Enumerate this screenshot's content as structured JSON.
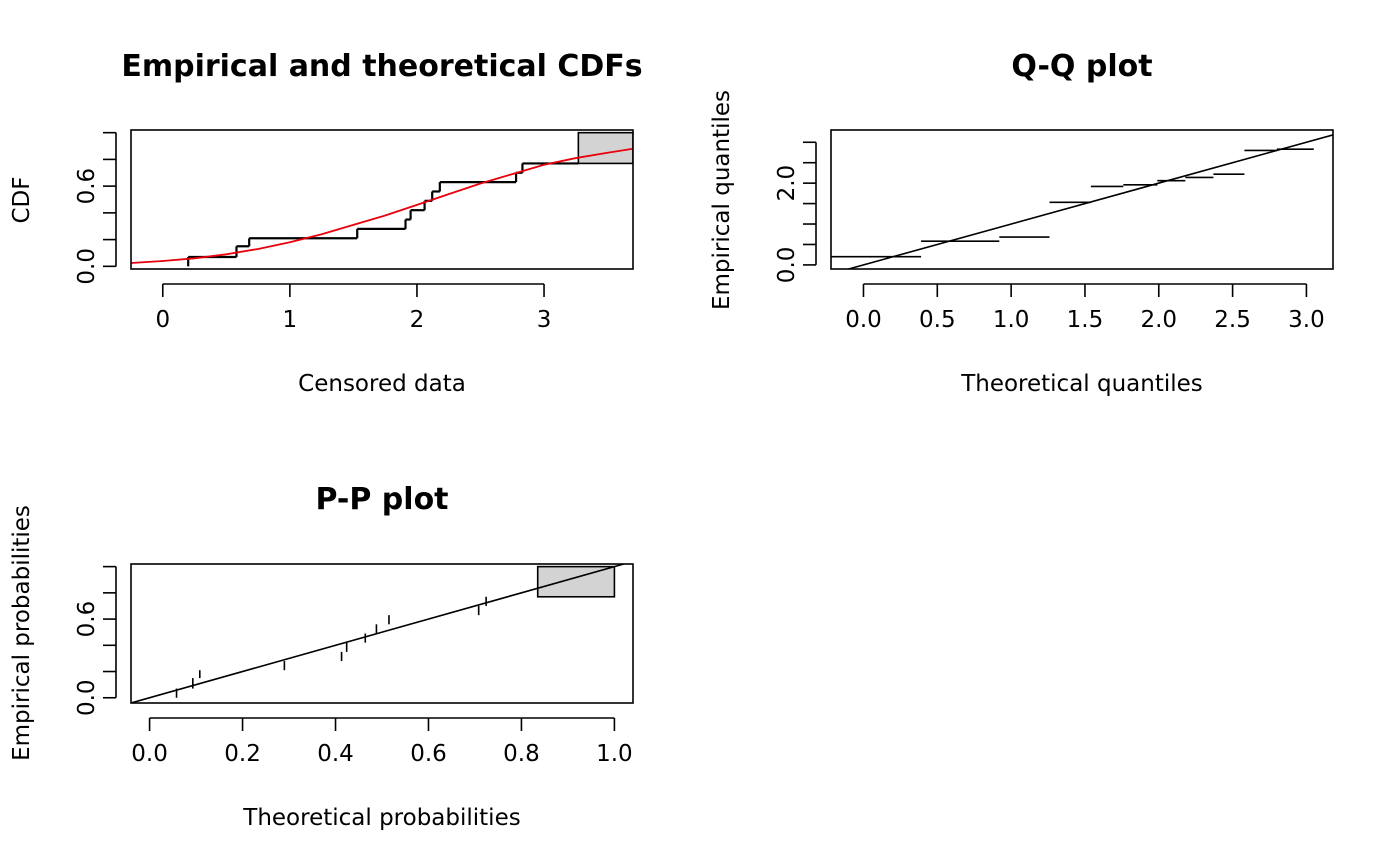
{
  "chart_data": [
    {
      "type": "line",
      "title": "Empirical and theoretical CDFs",
      "xlabel": "Censored data",
      "ylabel": "CDF",
      "xlim": [
        -0.25,
        3.7
      ],
      "ylim": [
        -0.02,
        1.02
      ],
      "xticks": [
        0,
        1,
        2,
        3
      ],
      "xtick_labels": [
        "0",
        "1",
        "2",
        "3"
      ],
      "yticks": [
        0.0,
        0.2,
        0.4,
        0.6,
        0.8,
        1.0
      ],
      "ytick_labels": [
        "0.0",
        "",
        "",
        "0.6",
        "",
        ""
      ],
      "empirical_steps": [
        [
          0.2,
          0.0,
          0.07
        ],
        [
          0.58,
          0.07,
          0.15
        ],
        [
          0.68,
          0.15,
          0.21
        ],
        [
          1.53,
          0.21,
          0.28
        ],
        [
          1.91,
          0.28,
          0.35
        ],
        [
          1.95,
          0.35,
          0.42
        ],
        [
          2.06,
          0.42,
          0.49
        ],
        [
          2.12,
          0.49,
          0.56
        ],
        [
          2.18,
          0.56,
          0.63
        ],
        [
          2.78,
          0.63,
          0.7
        ],
        [
          2.83,
          0.7,
          0.77
        ],
        [
          3.27,
          0.77,
          1.0
        ]
      ],
      "empirical_end_x": 3.7,
      "censored_box": {
        "x": [
          3.27,
          3.7
        ],
        "y": [
          0.77,
          1.0
        ]
      },
      "theoretical_curve": {
        "color": "#e8000b",
        "x": [
          -0.25,
          0.0,
          0.25,
          0.5,
          0.75,
          1.0,
          1.25,
          1.5,
          1.75,
          2.0,
          2.25,
          2.5,
          2.75,
          3.0,
          3.25,
          3.5,
          3.7
        ],
        "y": [
          0.025,
          0.04,
          0.06,
          0.09,
          0.13,
          0.18,
          0.24,
          0.31,
          0.38,
          0.46,
          0.54,
          0.62,
          0.69,
          0.76,
          0.81,
          0.85,
          0.88
        ]
      }
    },
    {
      "type": "scatter",
      "title": "Q-Q plot",
      "xlabel": "Theoretical quantiles",
      "ylabel": "Empirical quantiles",
      "xlim": [
        -0.22,
        3.18
      ],
      "ylim": [
        -0.1,
        3.3
      ],
      "xticks": [
        0.0,
        0.5,
        1.0,
        1.5,
        2.0,
        2.5,
        3.0
      ],
      "xtick_labels": [
        "0.0",
        "0.5",
        "1.0",
        "1.5",
        "2.0",
        "2.5",
        "3.0"
      ],
      "yticks": [
        0.0,
        0.5,
        1.0,
        1.5,
        2.0,
        2.5,
        3.0
      ],
      "ytick_labels": [
        "0.0",
        "",
        "",
        "",
        "2.0",
        "",
        ""
      ],
      "segments": [
        [
          -0.22,
          0.39,
          0.2
        ],
        [
          0.39,
          0.92,
          0.58
        ],
        [
          0.92,
          1.26,
          0.68
        ],
        [
          1.26,
          1.54,
          1.53
        ],
        [
          1.54,
          1.76,
          1.92
        ],
        [
          1.76,
          1.99,
          1.96
        ],
        [
          1.99,
          2.18,
          2.06
        ],
        [
          2.18,
          2.37,
          2.14
        ],
        [
          2.37,
          2.58,
          2.22
        ],
        [
          2.58,
          2.8,
          2.8
        ],
        [
          2.8,
          3.05,
          2.83
        ]
      ],
      "reference_line": [
        [
          -0.22,
          -0.22
        ],
        [
          3.18,
          3.18
        ]
      ]
    },
    {
      "type": "scatter",
      "title": "P-P plot",
      "xlabel": "Theoretical probabilities",
      "ylabel": "Empirical probabilities",
      "xlim": [
        -0.04,
        1.04
      ],
      "ylim": [
        -0.04,
        1.02
      ],
      "xticks": [
        0.0,
        0.2,
        0.4,
        0.6,
        0.8,
        1.0
      ],
      "xtick_labels": [
        "0.0",
        "0.2",
        "0.4",
        "0.6",
        "0.8",
        "1.0"
      ],
      "yticks": [
        0.0,
        0.2,
        0.4,
        0.6,
        0.8,
        1.0
      ],
      "ytick_labels": [
        "0.0",
        "",
        "",
        "0.6",
        "",
        ""
      ],
      "segments": [
        [
          0.058,
          0.0,
          0.07
        ],
        [
          0.093,
          0.07,
          0.15
        ],
        [
          0.108,
          0.15,
          0.21
        ],
        [
          0.29,
          0.21,
          0.28
        ],
        [
          0.413,
          0.28,
          0.35
        ],
        [
          0.424,
          0.35,
          0.42
        ],
        [
          0.464,
          0.42,
          0.49
        ],
        [
          0.488,
          0.49,
          0.56
        ],
        [
          0.515,
          0.56,
          0.63
        ],
        [
          0.708,
          0.63,
          0.7
        ],
        [
          0.724,
          0.7,
          0.77
        ]
      ],
      "censored_box": {
        "x": [
          0.835,
          1.0
        ],
        "y": [
          0.77,
          1.0
        ]
      },
      "reference_line": [
        [
          -0.04,
          -0.04
        ],
        [
          1.04,
          1.04
        ]
      ]
    }
  ]
}
